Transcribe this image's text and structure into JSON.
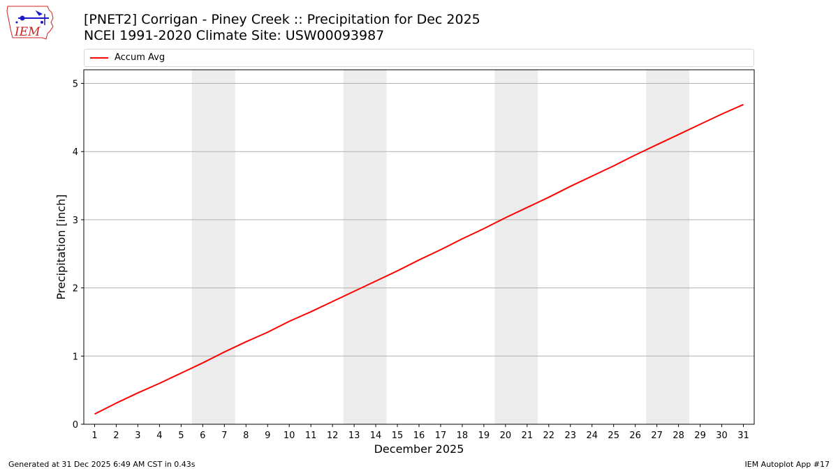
{
  "header": {
    "title_line1": "[PNET2] Corrigan - Piney Creek :: Precipitation for Dec 2025",
    "title_line2": "NCEI 1991-2020 Climate Site: USW00093987",
    "logo_text": "IEM"
  },
  "footer": {
    "generated": "Generated at 31 Dec 2025 6:49 AM CST in 0.43s",
    "app": "IEM Autoplot App #17"
  },
  "colors": {
    "line": "#ff0000",
    "weekend_shade": "#ececec",
    "grid": "#b0b0b0",
    "logo_red": "#cc2222",
    "logo_blue": "#1a1acc"
  },
  "chart_data": {
    "type": "line",
    "title": "[PNET2] Corrigan - Piney Creek :: Precipitation for Dec 2025",
    "subtitle": "NCEI 1991-2020 Climate Site: USW00093987",
    "xlabel": "December 2025",
    "ylabel": "Precipitation [inch]",
    "x": [
      1,
      2,
      3,
      4,
      5,
      6,
      7,
      8,
      9,
      10,
      11,
      12,
      13,
      14,
      15,
      16,
      17,
      18,
      19,
      20,
      21,
      22,
      23,
      24,
      25,
      26,
      27,
      28,
      29,
      30,
      31
    ],
    "xlim": [
      0.5,
      31.5
    ],
    "ylim": [
      0,
      5.2
    ],
    "yticks": [
      0,
      1,
      2,
      3,
      4,
      5
    ],
    "grid": "y-axis horizontal lines",
    "legend_position": "top, above plot",
    "shaded_weekends": [
      [
        6,
        7
      ],
      [
        13,
        14
      ],
      [
        20,
        21
      ],
      [
        27,
        28
      ]
    ],
    "series": [
      {
        "name": "Accum Avg",
        "color": "#ff0000",
        "values": [
          0.15,
          0.31,
          0.46,
          0.6,
          0.75,
          0.9,
          1.06,
          1.21,
          1.35,
          1.51,
          1.65,
          1.8,
          1.95,
          2.1,
          2.25,
          2.41,
          2.56,
          2.72,
          2.87,
          3.03,
          3.18,
          3.33,
          3.49,
          3.64,
          3.79,
          3.95,
          4.1,
          4.25,
          4.4,
          4.55,
          4.69
        ]
      }
    ]
  }
}
